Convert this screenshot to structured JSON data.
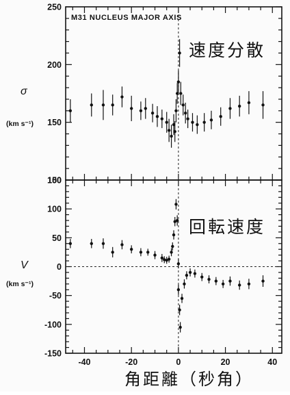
{
  "chart_data": [
    {
      "type": "scatter",
      "title": "M31 NUCLEUS MAJOR AXIS",
      "annotation": "速度分散",
      "ylabel": "σ",
      "yunit": "(km s⁻¹)",
      "ylim": [
        100,
        250
      ],
      "yticks_labeled": [
        100,
        150,
        200,
        250
      ],
      "xlim": [
        -48,
        44
      ],
      "error_bars": true,
      "reference_line": {
        "x": 0,
        "style": "dashed"
      },
      "points": [
        {
          "x": -46,
          "y": 160,
          "err": 10
        },
        {
          "x": -37,
          "y": 165,
          "err": 10
        },
        {
          "x": -32,
          "y": 165,
          "err": 13
        },
        {
          "x": -28,
          "y": 165,
          "err": 9
        },
        {
          "x": -24,
          "y": 172,
          "err": 9
        },
        {
          "x": -20,
          "y": 162,
          "err": 11
        },
        {
          "x": -16,
          "y": 160,
          "err": 8
        },
        {
          "x": -14,
          "y": 162,
          "err": 9
        },
        {
          "x": -11,
          "y": 158,
          "err": 8
        },
        {
          "x": -9,
          "y": 155,
          "err": 9
        },
        {
          "x": -7,
          "y": 153,
          "err": 8
        },
        {
          "x": -5,
          "y": 150,
          "err": 9
        },
        {
          "x": -4,
          "y": 143,
          "err": 10
        },
        {
          "x": -3,
          "y": 138,
          "err": 10
        },
        {
          "x": -2,
          "y": 148,
          "err": 9
        },
        {
          "x": -1.5,
          "y": 142,
          "err": 9
        },
        {
          "x": -1,
          "y": 160,
          "err": 10
        },
        {
          "x": -0.5,
          "y": 175,
          "err": 9
        },
        {
          "x": 0,
          "y": 185,
          "err": 10
        },
        {
          "x": 0.5,
          "y": 210,
          "err": 12
        },
        {
          "x": 1,
          "y": 175,
          "err": 10
        },
        {
          "x": 2,
          "y": 165,
          "err": 9
        },
        {
          "x": 3,
          "y": 158,
          "err": 9
        },
        {
          "x": 4,
          "y": 153,
          "err": 8
        },
        {
          "x": 6,
          "y": 150,
          "err": 8
        },
        {
          "x": 8,
          "y": 148,
          "err": 8
        },
        {
          "x": 11,
          "y": 150,
          "err": 8
        },
        {
          "x": 14,
          "y": 152,
          "err": 8
        },
        {
          "x": 18,
          "y": 155,
          "err": 8
        },
        {
          "x": 22,
          "y": 162,
          "err": 9
        },
        {
          "x": 26,
          "y": 164,
          "err": 9
        },
        {
          "x": 30,
          "y": 167,
          "err": 10
        },
        {
          "x": 36,
          "y": 165,
          "err": 12
        }
      ]
    },
    {
      "type": "scatter",
      "annotation": "回転速度",
      "ylabel": "V",
      "yunit": "(km s⁻¹)",
      "ylim": [
        -150,
        150
      ],
      "yticks_labeled": [
        -150,
        -100,
        -50,
        0,
        50,
        100,
        150
      ],
      "xlim": [
        -48,
        44
      ],
      "xticks_labeled": [
        -40,
        -20,
        0,
        20,
        40
      ],
      "xlabel": "角距離（秒角）",
      "error_bars": true,
      "reference_line_x": {
        "x": 0,
        "style": "dashed"
      },
      "reference_line_y": {
        "y": 0,
        "style": "dashed"
      },
      "points": [
        {
          "x": -46,
          "y": 40,
          "err": 8
        },
        {
          "x": -37,
          "y": 40,
          "err": 8
        },
        {
          "x": -32,
          "y": 40,
          "err": 9
        },
        {
          "x": -28,
          "y": 25,
          "err": 9
        },
        {
          "x": -24,
          "y": 38,
          "err": 8
        },
        {
          "x": -20,
          "y": 30,
          "err": 7
        },
        {
          "x": -16,
          "y": 25,
          "err": 7
        },
        {
          "x": -13,
          "y": 25,
          "err": 6
        },
        {
          "x": -10,
          "y": 20,
          "err": 7
        },
        {
          "x": -7,
          "y": 15,
          "err": 7
        },
        {
          "x": -6,
          "y": 12,
          "err": 6
        },
        {
          "x": -5,
          "y": 11,
          "err": 6
        },
        {
          "x": -4,
          "y": 13,
          "err": 6
        },
        {
          "x": -3,
          "y": 25,
          "err": 7
        },
        {
          "x": -2.5,
          "y": 35,
          "err": 7
        },
        {
          "x": -2,
          "y": 55,
          "err": 8
        },
        {
          "x": -1.5,
          "y": 78,
          "err": 8
        },
        {
          "x": -1,
          "y": 108,
          "err": 9
        },
        {
          "x": -0.5,
          "y": 80,
          "err": 9
        },
        {
          "x": 0,
          "y": 5,
          "err": 8
        },
        {
          "x": 0,
          "y": -40,
          "err": 9
        },
        {
          "x": 0.5,
          "y": -75,
          "err": 9
        },
        {
          "x": 0.8,
          "y": -105,
          "err": 9
        },
        {
          "x": 1.5,
          "y": -55,
          "err": 8
        },
        {
          "x": 2.5,
          "y": -30,
          "err": 8
        },
        {
          "x": 3.5,
          "y": -15,
          "err": 7
        },
        {
          "x": 5,
          "y": -10,
          "err": 7
        },
        {
          "x": 7,
          "y": -12,
          "err": 7
        },
        {
          "x": 10,
          "y": -18,
          "err": 7
        },
        {
          "x": 13,
          "y": -22,
          "err": 7
        },
        {
          "x": 16,
          "y": -25,
          "err": 7
        },
        {
          "x": 19,
          "y": -30,
          "err": 7
        },
        {
          "x": 22,
          "y": -25,
          "err": 8
        },
        {
          "x": 26,
          "y": -32,
          "err": 8
        },
        {
          "x": 30,
          "y": -30,
          "err": 9
        },
        {
          "x": 36,
          "y": -25,
          "err": 10
        }
      ]
    }
  ]
}
